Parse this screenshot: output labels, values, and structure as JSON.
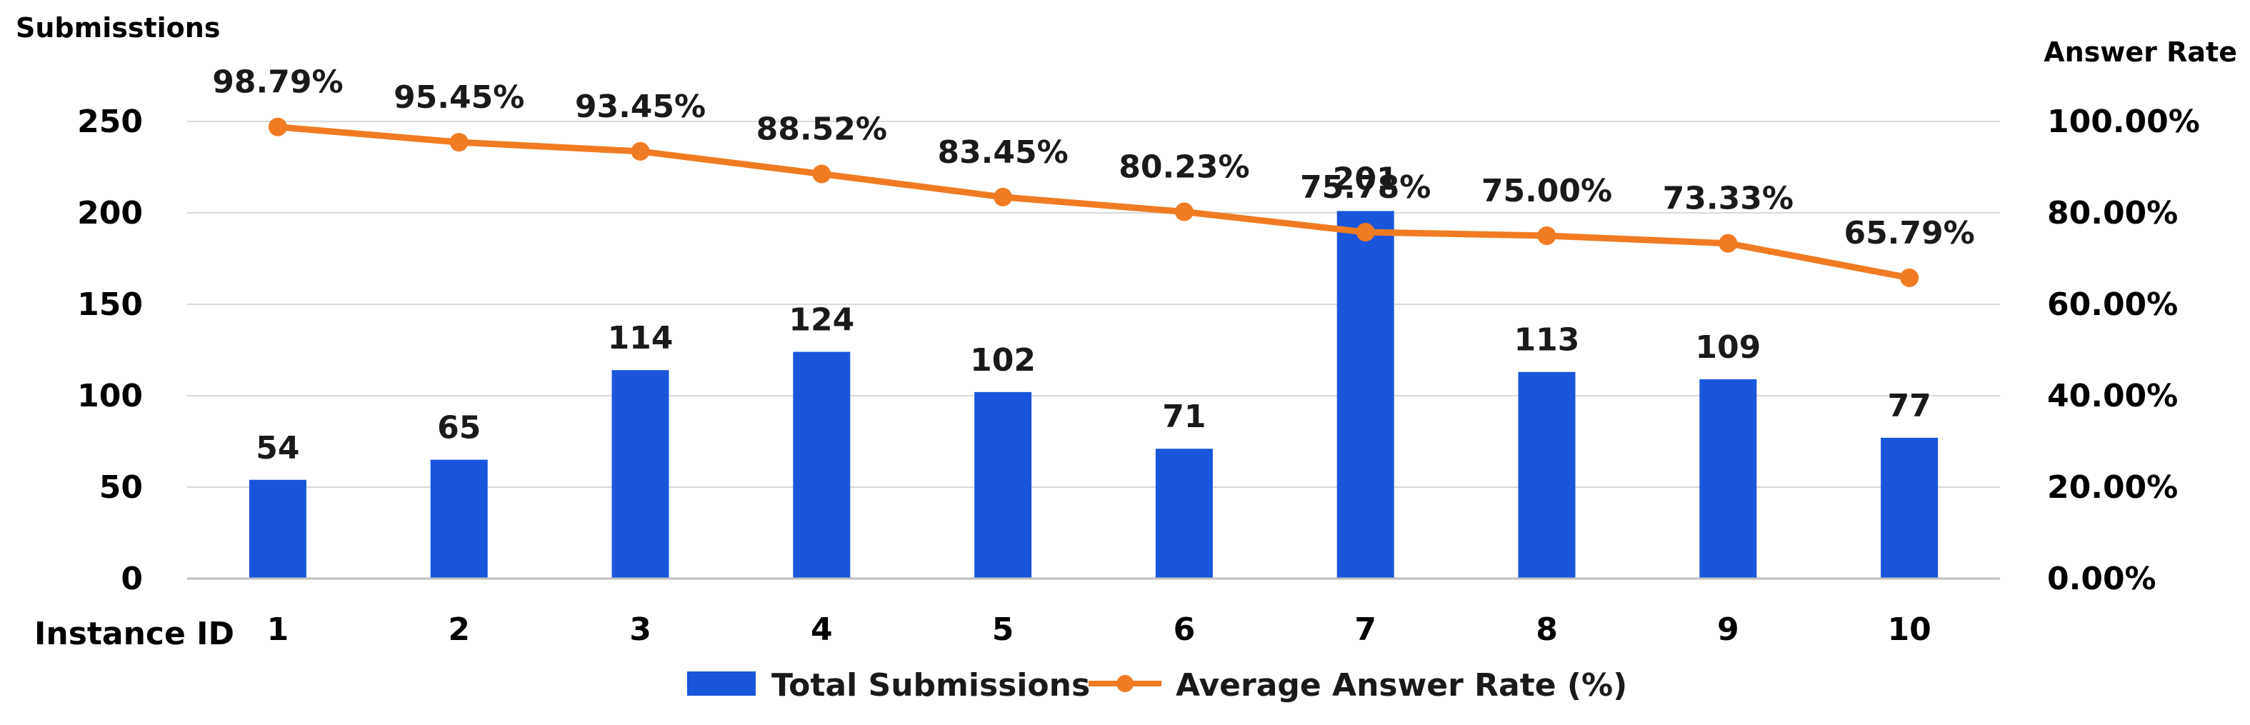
{
  "chart_data": {
    "type": "bar",
    "categories": [
      "1",
      "2",
      "3",
      "4",
      "5",
      "6",
      "7",
      "8",
      "9",
      "10"
    ],
    "xlabel": "Instance ID",
    "ylabel": "Submisstions",
    "y2label": "Answer Rate",
    "ylim": [
      0,
      250
    ],
    "y_ticks": [
      "0",
      "50",
      "100",
      "150",
      "200",
      "250"
    ],
    "y2lim": [
      0,
      100
    ],
    "y2_ticks": [
      "0.00%",
      "20.00%",
      "40.00%",
      "60.00%",
      "80.00%",
      "100.00%"
    ],
    "grid": true,
    "legend_position": "bottom",
    "series": [
      {
        "name": "Total Submissions",
        "type": "bar",
        "axis": "left",
        "color": "#1a56db",
        "values": [
          54,
          65,
          114,
          124,
          102,
          71,
          201,
          113,
          109,
          77
        ],
        "labels": [
          "54",
          "65",
          "114",
          "124",
          "102",
          "71",
          "201",
          "113",
          "109",
          "77"
        ]
      },
      {
        "name": "Average Answer Rate (%)",
        "type": "line",
        "axis": "right",
        "color": "#f07b22",
        "values": [
          98.79,
          95.45,
          93.45,
          88.52,
          83.45,
          80.23,
          75.78,
          75.0,
          73.33,
          65.79
        ],
        "labels": [
          "98.79%",
          "95.45%",
          "93.45%",
          "88.52%",
          "83.45%",
          "80.23%",
          "75.78%",
          "75.00%",
          "73.33%",
          "65.79%"
        ]
      }
    ]
  }
}
